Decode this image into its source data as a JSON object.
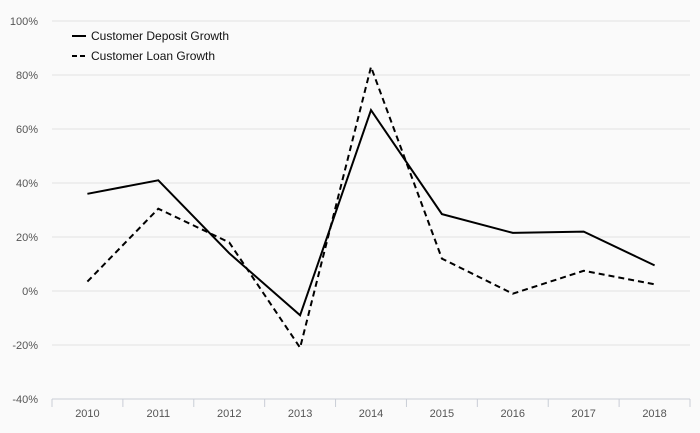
{
  "chart_data": {
    "type": "line",
    "categories": [
      "2010",
      "2011",
      "2012",
      "2013",
      "2014",
      "2015",
      "2016",
      "2017",
      "2018"
    ],
    "series": [
      {
        "name": "Customer Deposit Growth",
        "values": [
          36,
          41,
          14,
          -9,
          67,
          28.5,
          21.5,
          22,
          9.5
        ],
        "style": "solid",
        "color": "#000000"
      },
      {
        "name": "Customer Loan Growth",
        "values": [
          3.5,
          30.5,
          18,
          -21,
          83,
          12,
          -1,
          7.5,
          2.5
        ],
        "style": "dashed",
        "color": "#000000"
      }
    ],
    "yticks": [
      "-40%",
      "-20%",
      "0%",
      "20%",
      "40%",
      "60%",
      "80%",
      "100%"
    ],
    "ylim": [
      -40,
      100
    ],
    "grid": true,
    "legend_position": "top-left",
    "title": "",
    "xlabel": "",
    "ylabel": ""
  }
}
